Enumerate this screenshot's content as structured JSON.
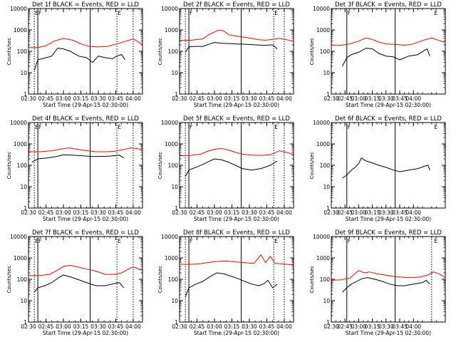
{
  "figure": {
    "xlabel": "Start Time (29-Apr-15 02:30:00)",
    "ylabel": "Counts/sec",
    "x_tick_labels": [
      "02:30",
      "02:45",
      "03:00",
      "03:15",
      "03:30",
      "03:45",
      "04:00"
    ],
    "y_tick_labels": [
      "1",
      "10",
      "100",
      "1000",
      "10000"
    ],
    "colors": {
      "events": "#000000",
      "lld": "#ff0000"
    }
  },
  "chart_data": [
    {
      "type": "line",
      "title": "Det 1f BLACK = Events, RED = LLD",
      "xlabel": "Start Time (29-Apr-15 02:30:00)",
      "ylabel": "Counts/sec",
      "x_unit": "minutes after 02:30",
      "xlim": [
        0,
        98
      ],
      "ylim": [
        1,
        10000
      ],
      "yscale": "log",
      "markers_dotted": [
        5,
        76,
        90
      ],
      "markers_solid": [
        8,
        53
      ],
      "letters": [
        {
          "text": "E",
          "x": 5
        },
        {
          "text": "F",
          "x": 8
        },
        {
          "text": "E",
          "x": 76
        }
      ],
      "series": [
        {
          "color": "#ff0000",
          "x": [
            0,
            8,
            15,
            22,
            30,
            38,
            45,
            52,
            60,
            68,
            76,
            84,
            90,
            95,
            98
          ],
          "values": [
            150,
            150,
            180,
            300,
            400,
            330,
            220,
            170,
            160,
            170,
            220,
            300,
            380,
            260,
            200
          ]
        },
        {
          "color": "#000000",
          "x": [
            5,
            8,
            12,
            20,
            25,
            30,
            36,
            43,
            50,
            55,
            60,
            66,
            72,
            76,
            80,
            83
          ],
          "values": [
            13,
            40,
            45,
            60,
            140,
            130,
            100,
            60,
            50,
            30,
            60,
            50,
            45,
            60,
            70,
            40
          ]
        }
      ]
    },
    {
      "type": "line",
      "title": "Det 2f BLACK = Events, RED = LLD",
      "xlabel": "Start Time (29-Apr-15 02:30:00)",
      "ylabel": "Counts/sec",
      "x_unit": "minutes after 02:30",
      "xlim": [
        0,
        98
      ],
      "ylim": [
        1,
        10000
      ],
      "yscale": "log",
      "markers_dotted": [
        5,
        81,
        90
      ],
      "markers_solid": [
        8,
        53
      ],
      "letters": [
        {
          "text": "F",
          "x": 8
        },
        {
          "text": "E",
          "x": 81
        }
      ],
      "series": [
        {
          "color": "#ff0000",
          "x": [
            0,
            10,
            20,
            25,
            30,
            34,
            38,
            42,
            46,
            50,
            56,
            62,
            68,
            74,
            80,
            86,
            92,
            98
          ],
          "values": [
            320,
            330,
            380,
            600,
            800,
            1000,
            900,
            600,
            550,
            500,
            450,
            400,
            350,
            330,
            360,
            400,
            350,
            290
          ]
        },
        {
          "color": "#000000",
          "x": [
            5,
            8,
            14,
            20,
            26,
            30,
            36,
            42,
            50,
            58,
            66,
            72,
            80,
            84
          ],
          "values": [
            90,
            160,
            170,
            170,
            220,
            260,
            240,
            230,
            220,
            210,
            200,
            190,
            200,
            130
          ]
        }
      ]
    },
    {
      "type": "line",
      "title": "Det 3f BLACK = Events, RED = LLD",
      "xlabel": "Start Time (29-Apr-15 02:30:00)",
      "ylabel": "Counts/sec",
      "x_unit": "minutes after 02:30",
      "xlim": [
        0,
        125
      ],
      "ylim": [
        1,
        10000
      ],
      "yscale": "log",
      "markers_dotted": [],
      "markers_solid": [
        17,
        70
      ],
      "letters": [
        {
          "text": "F",
          "x": 17
        },
        {
          "text": "E",
          "x": 112
        }
      ],
      "series": [
        {
          "color": "#ff0000",
          "x": [
            0,
            10,
            20,
            30,
            38,
            45,
            52,
            60,
            70,
            80,
            90,
            100,
            110,
            118,
            125
          ],
          "values": [
            190,
            190,
            220,
            300,
            420,
            360,
            270,
            220,
            210,
            190,
            220,
            320,
            420,
            320,
            260
          ]
        },
        {
          "color": "#000000",
          "x": [
            12,
            17,
            22,
            30,
            38,
            45,
            52,
            60,
            68,
            75,
            85,
            95,
            102,
            105,
            108
          ],
          "values": [
            20,
            50,
            70,
            90,
            140,
            130,
            80,
            60,
            55,
            40,
            60,
            70,
            110,
            130,
            60
          ]
        }
      ]
    },
    {
      "type": "line",
      "title": "Det 4f BLACK = Events, RED = LLD",
      "xlabel": "Start Time (29-Apr-15 02:30:00)",
      "ylabel": "Counts/sec",
      "x_unit": "minutes after 02:30",
      "xlim": [
        0,
        98
      ],
      "ylim": [
        1,
        10000
      ],
      "yscale": "log",
      "markers_dotted": [
        5,
        76,
        90
      ],
      "markers_solid": [
        8,
        53
      ],
      "letters": [
        {
          "text": "E",
          "x": 5
        },
        {
          "text": "F",
          "x": 8
        },
        {
          "text": "E",
          "x": 76
        }
      ],
      "series": [
        {
          "color": "#ff0000",
          "x": [
            0,
            10,
            20,
            28,
            35,
            42,
            50,
            58,
            66,
            74,
            82,
            88,
            94,
            98
          ],
          "values": [
            430,
            430,
            480,
            580,
            650,
            560,
            480,
            430,
            430,
            450,
            550,
            650,
            600,
            500
          ]
        },
        {
          "color": "#000000",
          "x": [
            3,
            8,
            16,
            24,
            30,
            38,
            46,
            54,
            62,
            70,
            78,
            82
          ],
          "values": [
            140,
            200,
            220,
            260,
            310,
            300,
            280,
            260,
            260,
            270,
            300,
            220
          ]
        }
      ]
    },
    {
      "type": "line",
      "title": "Det 5f BLACK = Events, RED = LLD",
      "xlabel": "Start Time (29-Apr-15 02:30:00)",
      "ylabel": "Counts/sec",
      "x_unit": "minutes after 02:30",
      "xlim": [
        0,
        98
      ],
      "ylim": [
        1,
        10000
      ],
      "yscale": "log",
      "markers_dotted": [
        5,
        81,
        90
      ],
      "markers_solid": [
        8,
        53
      ],
      "letters": [
        {
          "text": "F",
          "x": 8
        },
        {
          "text": "E",
          "x": 81
        }
      ],
      "series": [
        {
          "color": "#ff0000",
          "x": [
            0,
            10,
            18,
            24,
            30,
            36,
            42,
            48,
            54,
            62,
            70,
            78,
            86,
            92,
            98
          ],
          "values": [
            280,
            290,
            330,
            450,
            560,
            620,
            520,
            400,
            330,
            300,
            290,
            310,
            480,
            400,
            320
          ]
        },
        {
          "color": "#000000",
          "x": [
            5,
            8,
            14,
            20,
            26,
            30,
            36,
            42,
            48,
            54,
            62,
            70,
            78,
            84
          ],
          "values": [
            30,
            60,
            80,
            110,
            160,
            200,
            180,
            140,
            100,
            70,
            60,
            70,
            100,
            160
          ]
        }
      ]
    },
    {
      "type": "line",
      "title": "Det 6f BLACK = Events, RED = LLD",
      "xlabel": "Start Time (29-Apr-15 02:30:00)",
      "ylabel": "Counts/sec",
      "x_unit": "minutes after 02:30",
      "xlim": [
        0,
        125
      ],
      "ylim": [
        1,
        10000
      ],
      "yscale": "log",
      "markers_dotted": [],
      "markers_solid": [
        17,
        70
      ],
      "letters": [
        {
          "text": "F",
          "x": 17
        },
        {
          "text": "E",
          "x": 112
        }
      ],
      "series": [
        {
          "color": "#000000",
          "x": [
            12,
            17,
            22,
            26,
            30,
            33,
            38,
            45,
            52,
            60,
            68,
            75,
            85,
            95,
            102,
            106,
            108
          ],
          "values": [
            25,
            35,
            60,
            80,
            120,
            220,
            160,
            130,
            100,
            80,
            60,
            50,
            60,
            70,
            90,
            100,
            60
          ]
        }
      ]
    },
    {
      "type": "line",
      "title": "Det 7f BLACK = Events, RED = LLD",
      "xlabel": "Start Time (29-Apr-15 02:30:00)",
      "ylabel": "Counts/sec",
      "x_unit": "minutes after 02:30",
      "xlim": [
        0,
        98
      ],
      "ylim": [
        1,
        10000
      ],
      "yscale": "log",
      "markers_dotted": [
        5,
        76,
        90
      ],
      "markers_solid": [
        8,
        53
      ],
      "letters": [
        {
          "text": "E",
          "x": 5
        },
        {
          "text": "F",
          "x": 8
        },
        {
          "text": "E",
          "x": 76
        }
      ],
      "series": [
        {
          "color": "#ff0000",
          "x": [
            0,
            10,
            18,
            24,
            30,
            36,
            42,
            50,
            58,
            66,
            74,
            80,
            86,
            90,
            98
          ],
          "values": [
            150,
            150,
            170,
            250,
            400,
            450,
            380,
            300,
            240,
            170,
            170,
            200,
            300,
            380,
            260
          ]
        },
        {
          "color": "#000000",
          "x": [
            5,
            8,
            14,
            20,
            26,
            30,
            36,
            42,
            50,
            58,
            66,
            72,
            78,
            82
          ],
          "values": [
            25,
            40,
            50,
            70,
            120,
            160,
            130,
            100,
            70,
            50,
            50,
            60,
            70,
            40
          ]
        }
      ]
    },
    {
      "type": "line",
      "title": "Det 8f BLACK = Events, RED = LLD",
      "xlabel": "Start Time (29-Apr-15 02:30:00)",
      "ylabel": "Counts/sec",
      "x_unit": "minutes after 02:30",
      "xlim": [
        0,
        98
      ],
      "ylim": [
        1,
        10000
      ],
      "yscale": "log",
      "markers_dotted": [
        5,
        81,
        90
      ],
      "markers_solid": [
        8,
        53
      ],
      "letters": [
        {
          "text": "F",
          "x": 8
        },
        {
          "text": "E",
          "x": 81
        }
      ],
      "series": [
        {
          "color": "#ff0000",
          "x": [
            0,
            10,
            18,
            26,
            34,
            40,
            48,
            56,
            64,
            70,
            74,
            78,
            82,
            90,
            98
          ],
          "values": [
            500,
            500,
            540,
            620,
            700,
            720,
            650,
            600,
            560,
            1400,
            600,
            1200,
            560,
            520,
            460
          ]
        },
        {
          "color": "#000000",
          "x": [
            5,
            8,
            14,
            20,
            26,
            32,
            38,
            44,
            50,
            56,
            62,
            68,
            72,
            76,
            80,
            84
          ],
          "values": [
            15,
            40,
            60,
            80,
            130,
            200,
            180,
            140,
            110,
            80,
            60,
            50,
            60,
            90,
            40,
            60
          ]
        }
      ]
    },
    {
      "type": "line",
      "title": "Det 9f BLACK = Events, RED = LLD",
      "xlabel": "Start Time (29-Apr-15 02:30:00)",
      "ylabel": "Counts/sec",
      "x_unit": "minutes after 02:30",
      "xlim": [
        0,
        125
      ],
      "ylim": [
        1,
        10000
      ],
      "yscale": "log",
      "markers_dotted": [
        110
      ],
      "markers_solid": [
        17,
        70
      ],
      "letters": [
        {
          "text": "F",
          "x": 17
        },
        {
          "text": "E",
          "x": 112
        }
      ],
      "series": [
        {
          "color": "#ff0000",
          "x": [
            0,
            10,
            20,
            26,
            30,
            36,
            42,
            50,
            58,
            66,
            74,
            82,
            90,
            98,
            106,
            112,
            118,
            125
          ],
          "values": [
            90,
            95,
            110,
            180,
            260,
            200,
            220,
            180,
            160,
            140,
            130,
            120,
            120,
            130,
            160,
            220,
            180,
            120
          ]
        },
        {
          "color": "#000000",
          "x": [
            12,
            17,
            22,
            28,
            34,
            40,
            48,
            56,
            64,
            72,
            80,
            90,
            100,
            104,
            108
          ],
          "values": [
            25,
            40,
            60,
            80,
            110,
            120,
            100,
            80,
            60,
            50,
            50,
            60,
            70,
            90,
            60
          ]
        }
      ]
    }
  ]
}
